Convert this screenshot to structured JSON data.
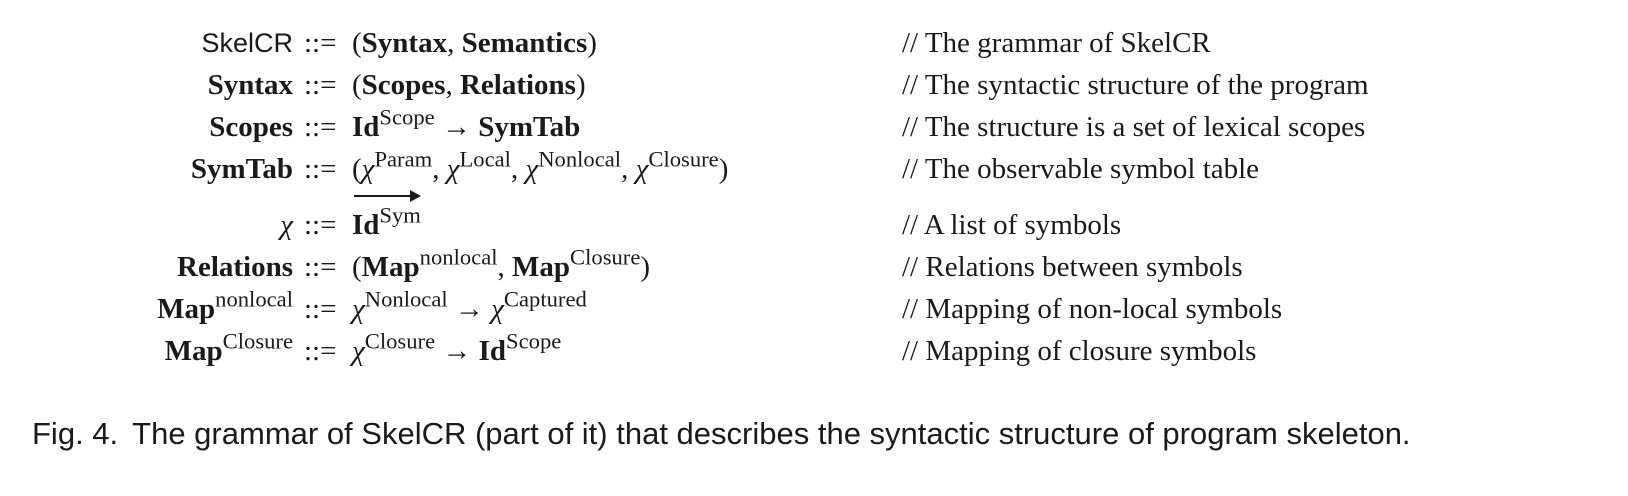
{
  "grammar": {
    "op": "::=",
    "rows": [
      {
        "lhs": "SkelCR",
        "rhs": {
          "open": "(",
          "a": "Syntax",
          "sep": ",",
          "b": "Semantics",
          "close": ")"
        },
        "comment": "// The grammar of SkelCR"
      },
      {
        "lhs": "Syntax",
        "rhs": {
          "open": "(",
          "a": "Scopes",
          "sep": ",",
          "b": "Relations",
          "close": ")"
        },
        "comment": "// The syntactic structure of the program"
      },
      {
        "lhs": "Scopes",
        "rhs": {
          "base": "Id",
          "sup": "Scope",
          "arrow": "→",
          "target": "SymTab"
        },
        "comment": "// The structure is a set of lexical scopes"
      },
      {
        "lhs": "SymTab",
        "rhs": {
          "open": "(",
          "chi": "χ",
          "sup1": "Param",
          "sup2": "Local",
          "sup3": "Nonlocal",
          "sup4": "Closure",
          "sep": ",",
          "close": ")"
        },
        "comment": "// The observable symbol table"
      },
      {
        "lhs": "χ",
        "rhs": {
          "base": "Id",
          "sup": "Sym"
        },
        "comment": "// A list of symbols"
      },
      {
        "lhs": "Relations",
        "rhs": {
          "open": "(",
          "base": "Map",
          "sup1": "nonlocal",
          "sep": ",",
          "sup2": "Closure",
          "close": ")"
        },
        "comment": "// Relations between symbols"
      },
      {
        "lhs": {
          "base": "Map",
          "sup": "nonlocal"
        },
        "rhs": {
          "chi": "χ",
          "sup1": "Nonlocal",
          "arrow": "→",
          "sup2": "Captured"
        },
        "comment": "// Mapping of non-local symbols"
      },
      {
        "lhs": {
          "base": "Map",
          "sup": "Closure"
        },
        "rhs": {
          "chi": "χ",
          "sup1": "Closure",
          "arrow": "→",
          "base": "Id",
          "sup2": "Scope"
        },
        "comment": "// Mapping of closure symbols"
      }
    ]
  },
  "caption": {
    "label": "Fig. 4.",
    "text": "The grammar of SkelCR (part of it) that describes the syntactic structure of program skeleton."
  }
}
